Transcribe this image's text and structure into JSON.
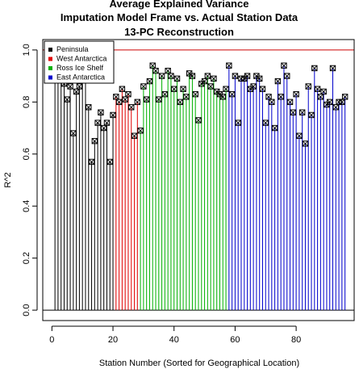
{
  "chart_data": {
    "type": "scatter",
    "title_lines": [
      "Average Explained Variance",
      "Imputation Model Frame vs. Actual Station Data",
      "13-PC Reconstruction"
    ],
    "xlabel": "Station Number (Sorted for Geographical Location)",
    "ylabel": "R^2",
    "xlim": [
      -3,
      99
    ],
    "ylim": [
      -0.04,
      1.04
    ],
    "x_ticks": [
      0,
      20,
      40,
      60,
      80
    ],
    "y_ticks": [
      0.0,
      0.2,
      0.4,
      0.6,
      0.8,
      1.0
    ],
    "x_tick_labels": [
      "0",
      "20",
      "40",
      "60",
      "80"
    ],
    "y_tick_labels": [
      "0.0",
      "0.2",
      "0.4",
      "0.6",
      "0.8",
      "1.0"
    ],
    "reference_lines": [
      {
        "y": 1.0,
        "color": "#cc0000"
      },
      {
        "y": 0.0,
        "color": "#000000"
      }
    ],
    "legend": {
      "placement": "top-left",
      "entries": [
        {
          "label": "Peninsula",
          "color": "#000000"
        },
        {
          "label": "West Antarctica",
          "color": "#e00000"
        },
        {
          "label": "Ross Ice Shelf",
          "color": "#00b000"
        },
        {
          "label": "East Antarctica",
          "color": "#0000cc"
        }
      ]
    },
    "series": [
      {
        "name": "Peninsula",
        "color": "#000000",
        "x": [
          1,
          2,
          3,
          4,
          5,
          6,
          7,
          8,
          9,
          10,
          11,
          12,
          13,
          14,
          15,
          16,
          17,
          18,
          19,
          20
        ],
        "y": [
          0.92,
          0.91,
          0.9,
          0.87,
          0.81,
          0.86,
          0.68,
          0.84,
          0.86,
          0.91,
          0.92,
          0.78,
          0.57,
          0.65,
          0.72,
          0.76,
          0.7,
          0.72,
          0.57,
          0.75
        ]
      },
      {
        "name": "West Antarctica",
        "color": "#e00000",
        "x": [
          21,
          22,
          23,
          24,
          25,
          26,
          27,
          28
        ],
        "y": [
          0.82,
          0.8,
          0.85,
          0.81,
          0.83,
          0.78,
          0.67,
          0.8
        ]
      },
      {
        "name": "Ross Ice Shelf",
        "color": "#00b000",
        "x": [
          29,
          30,
          31,
          32,
          33,
          34,
          35,
          36,
          37,
          38,
          39,
          40,
          41,
          42,
          43,
          44,
          45,
          46,
          47,
          48,
          49,
          50,
          51,
          52,
          53,
          54,
          55,
          56,
          57
        ],
        "y": [
          0.69,
          0.86,
          0.81,
          0.88,
          0.94,
          0.92,
          0.81,
          0.9,
          0.83,
          0.92,
          0.9,
          0.85,
          0.89,
          0.8,
          0.85,
          0.82,
          0.91,
          0.9,
          0.83,
          0.73,
          0.87,
          0.88,
          0.9,
          0.86,
          0.89,
          0.84,
          0.83,
          0.82,
          0.85
        ]
      },
      {
        "name": "East Antarctica",
        "color": "#0000cc",
        "x": [
          58,
          59,
          60,
          61,
          62,
          63,
          64,
          65,
          66,
          67,
          68,
          69,
          70,
          71,
          72,
          73,
          74,
          75,
          76,
          77,
          78,
          79,
          80,
          81,
          82,
          83,
          84,
          85,
          86,
          87,
          88,
          89,
          90,
          91,
          92,
          93,
          94,
          95,
          96
        ],
        "y": [
          0.94,
          0.83,
          0.9,
          0.72,
          0.89,
          0.89,
          0.9,
          0.85,
          0.86,
          0.9,
          0.89,
          0.85,
          0.72,
          0.82,
          0.8,
          0.7,
          0.88,
          0.82,
          0.94,
          0.9,
          0.8,
          0.76,
          0.83,
          0.67,
          0.76,
          0.64,
          0.86,
          0.75,
          0.93,
          0.85,
          0.82,
          0.84,
          0.79,
          0.8,
          0.93,
          0.78,
          0.8,
          0.8,
          0.82
        ]
      }
    ]
  }
}
